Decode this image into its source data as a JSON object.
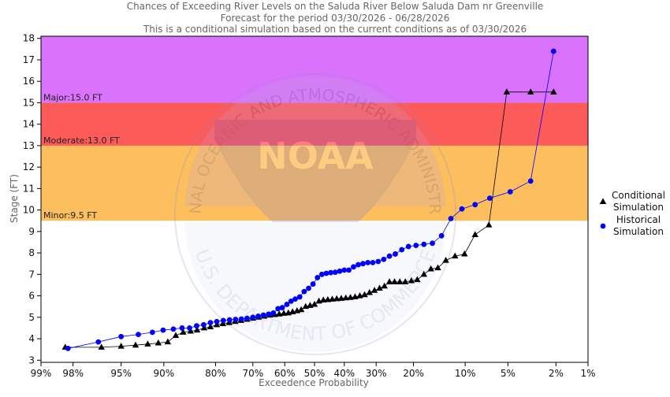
{
  "chart_data": {
    "type": "scatter",
    "title_lines": [
      "Chances of Exceeding River Levels on the Saluda River Below Saluda Dam nr Greenville",
      "Forecast for the period 03/30/2026 - 06/28/2026",
      "This is a conditional simulation based on the current conditions as of 03/30/2026"
    ],
    "xlabel": "Exceedence Probability",
    "ylabel": "Stage (FT)",
    "x_scale": "normal-probability",
    "x_ticks": [
      {
        "p": 99,
        "label": "99%"
      },
      {
        "p": 98,
        "label": "98%"
      },
      {
        "p": 95,
        "label": "95%"
      },
      {
        "p": 90,
        "label": "90%"
      },
      {
        "p": 80,
        "label": "80%"
      },
      {
        "p": 70,
        "label": "70%"
      },
      {
        "p": 60,
        "label": "60%"
      },
      {
        "p": 50,
        "label": "50%"
      },
      {
        "p": 40,
        "label": "40%"
      },
      {
        "p": 30,
        "label": "30%"
      },
      {
        "p": 20,
        "label": "20%"
      },
      {
        "p": 10,
        "label": "10%"
      },
      {
        "p": 5,
        "label": "5%"
      },
      {
        "p": 2,
        "label": "2%"
      },
      {
        "p": 1,
        "label": "1%"
      }
    ],
    "xlim": [
      99,
      1
    ],
    "ylim": [
      2.9,
      18.1
    ],
    "y_ticks": [
      3,
      4,
      5,
      6,
      7,
      8,
      9,
      10,
      11,
      12,
      13,
      14,
      15,
      16,
      17,
      18
    ],
    "bands": [
      {
        "label": "Minor:9.5 FT",
        "from": 9.5,
        "to": 13.0,
        "color": "#fdbe5e"
      },
      {
        "label": "Moderate:13.0 FT",
        "from": 13.0,
        "to": 15.0,
        "color": "#fd5a5a"
      },
      {
        "label": "Major:15.0 FT",
        "from": 15.0,
        "to": 18.1,
        "color": "#da73fb"
      }
    ],
    "watermark": {
      "text": "NOAA",
      "ring_text": "NATIONAL OCEANIC AND ATMOSPHERIC ADMINISTRATION",
      "bottom_text": "U.S. DEPARTMENT OF COMMERCE"
    },
    "legend_position": "right",
    "series": [
      {
        "name": "Conditional Simulation",
        "marker": "triangle",
        "color": "#000000",
        "x": [
          98.3,
          96.5,
          95.0,
          93.6,
          92.2,
          90.8,
          89.4,
          88.1,
          86.8,
          85.4,
          84.1,
          82.6,
          81.2,
          79.7,
          78.2,
          76.6,
          75.0,
          73.4,
          71.7,
          70.0,
          68.3,
          66.6,
          64.9,
          63.3,
          61.8,
          60.3,
          58.8,
          57.4,
          55.9,
          54.5,
          53.0,
          51.5,
          50.0,
          48.5,
          47.0,
          45.5,
          44.0,
          42.5,
          41.0,
          39.5,
          38.0,
          36.5,
          35.0,
          33.5,
          32.0,
          30.5,
          29.0,
          27.6,
          26.2,
          24.8,
          23.4,
          22.0,
          20.5,
          19.1,
          17.6,
          16.1,
          14.7,
          13.2,
          11.6,
          10.1,
          8.6,
          6.9,
          5.1,
          3.3,
          2.1
        ],
        "y": [
          3.6,
          3.6,
          3.65,
          3.7,
          3.75,
          3.8,
          3.85,
          4.15,
          4.3,
          4.35,
          4.4,
          4.5,
          4.55,
          4.65,
          4.7,
          4.75,
          4.8,
          4.85,
          4.9,
          4.95,
          5.0,
          5.05,
          5.1,
          5.12,
          5.15,
          5.18,
          5.2,
          5.25,
          5.3,
          5.35,
          5.5,
          5.55,
          5.6,
          5.75,
          5.8,
          5.82,
          5.84,
          5.86,
          5.88,
          5.9,
          5.92,
          5.95,
          6.0,
          6.05,
          6.15,
          6.25,
          6.35,
          6.45,
          6.65,
          6.65,
          6.65,
          6.65,
          6.7,
          6.75,
          7.0,
          7.25,
          7.3,
          7.65,
          7.85,
          7.95,
          8.85,
          9.3,
          15.5,
          15.5,
          15.5
        ]
      },
      {
        "name": "Historical Simulation",
        "marker": "circle",
        "color": "#0000ff",
        "x": [
          98.2,
          96.7,
          95.0,
          93.3,
          91.6,
          90.1,
          88.5,
          87.0,
          85.6,
          84.2,
          82.7,
          81.2,
          79.7,
          78.1,
          76.5,
          74.9,
          73.3,
          71.7,
          70.0,
          68.4,
          66.8,
          65.2,
          63.7,
          62.2,
          60.8,
          59.3,
          57.9,
          56.5,
          55.0,
          53.5,
          52.0,
          50.5,
          49.0,
          47.5,
          46.0,
          44.5,
          43.0,
          41.5,
          40.0,
          38.5,
          37.0,
          35.5,
          34.0,
          32.5,
          31.0,
          29.4,
          27.8,
          26.2,
          24.6,
          22.9,
          21.2,
          19.4,
          17.6,
          15.8,
          14.0,
          12.3,
          10.5,
          8.6,
          6.8,
          4.8,
          3.3,
          2.1
        ],
        "y": [
          3.55,
          3.85,
          4.1,
          4.2,
          4.3,
          4.4,
          4.45,
          4.5,
          4.5,
          4.6,
          4.65,
          4.75,
          4.8,
          4.85,
          4.88,
          4.9,
          4.92,
          4.95,
          5.0,
          5.05,
          5.1,
          5.15,
          5.2,
          5.4,
          5.45,
          5.6,
          5.75,
          5.85,
          5.95,
          6.2,
          6.35,
          6.55,
          6.85,
          7.0,
          7.05,
          7.08,
          7.1,
          7.15,
          7.2,
          7.2,
          7.35,
          7.45,
          7.5,
          7.55,
          7.55,
          7.6,
          7.7,
          7.85,
          7.95,
          8.15,
          8.3,
          8.35,
          8.4,
          8.45,
          8.8,
          9.6,
          10.05,
          10.25,
          10.55,
          10.85,
          11.35,
          17.4
        ]
      }
    ]
  }
}
